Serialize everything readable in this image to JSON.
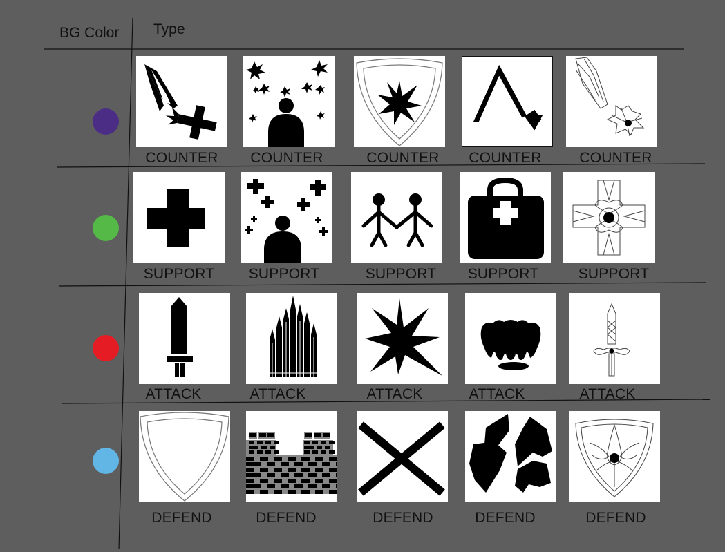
{
  "headers": {
    "bg_color": "BG Color",
    "type": "Type"
  },
  "colors": {
    "background": "#5e5e5e",
    "counter": "#4b2d86",
    "support": "#55b947",
    "attack": "#e51c24",
    "defend": "#62b6e6"
  },
  "rows": [
    {
      "type": "counter",
      "icons": [
        {
          "name": "shards-cross-icon",
          "label": "COUNTER"
        },
        {
          "name": "figure-sparkles-icon",
          "label": "COUNTER"
        },
        {
          "name": "shield-burst-icon",
          "label": "COUNTER"
        },
        {
          "name": "arrow-redirect-icon",
          "label": "COUNTER"
        },
        {
          "name": "ornate-shards-icon",
          "label": "COUNTER"
        }
      ]
    },
    {
      "type": "support",
      "icons": [
        {
          "name": "medical-cross-icon",
          "label": "SUPPORT"
        },
        {
          "name": "figure-crosses-icon",
          "label": "SUPPORT"
        },
        {
          "name": "stick-figures-holding-hands-icon",
          "label": "SUPPORT"
        },
        {
          "name": "first-aid-kit-icon",
          "label": "SUPPORT"
        },
        {
          "name": "ornate-cross-icon",
          "label": "SUPPORT"
        }
      ]
    },
    {
      "type": "attack",
      "icons": [
        {
          "name": "sword-icon",
          "label": "ATTACK"
        },
        {
          "name": "spike-cluster-icon",
          "label": "ATTACK"
        },
        {
          "name": "burst-icon",
          "label": "ATTACK"
        },
        {
          "name": "fangs-icon",
          "label": "ATTACK"
        },
        {
          "name": "ornate-sword-icon",
          "label": "ATTACK"
        }
      ]
    },
    {
      "type": "defend",
      "icons": [
        {
          "name": "shield-outline-icon",
          "label": "DEFEND"
        },
        {
          "name": "castle-wall-icon",
          "label": "DEFEND"
        },
        {
          "name": "x-mark-icon",
          "label": "DEFEND"
        },
        {
          "name": "rock-barrier-icon",
          "label": "DEFEND"
        },
        {
          "name": "ornate-shield-icon",
          "label": "DEFEND"
        }
      ]
    }
  ]
}
